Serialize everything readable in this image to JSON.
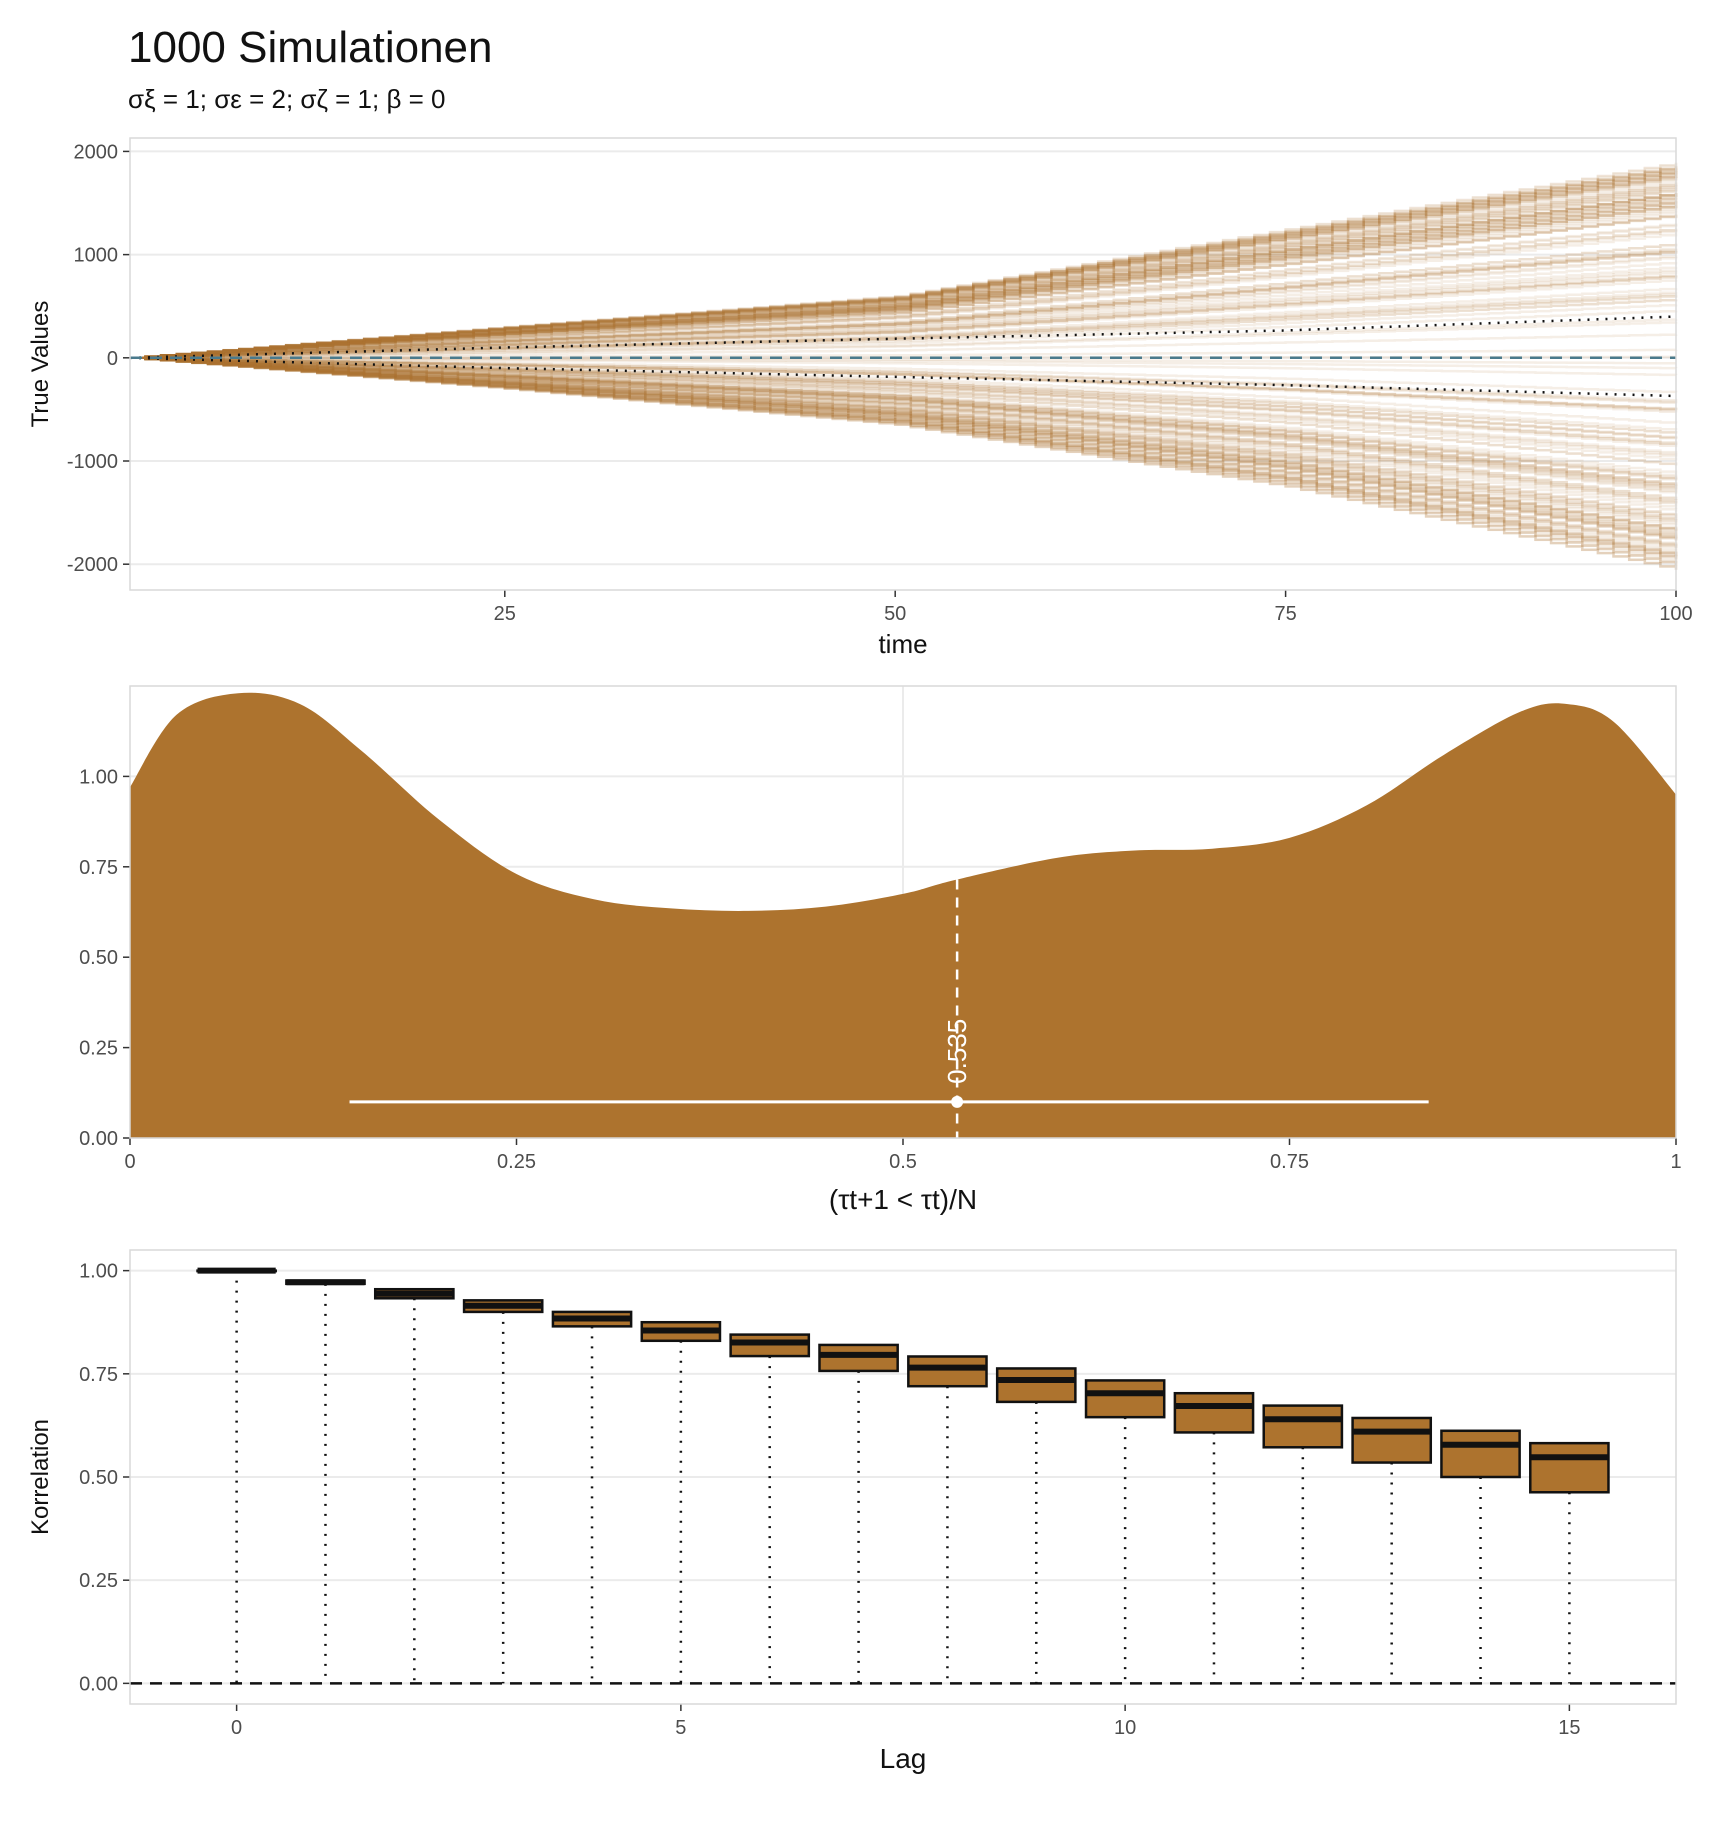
{
  "title": "1000 Simulationen",
  "subtitle": "σξ = 1;  σε = 2;  σζ = 1;  β = 0",
  "colors": {
    "fill": "#ad732e",
    "grid": "#ebebeb",
    "panel_border": "#d9d9d9",
    "ref_line": "#4a7a8c"
  },
  "chart_data": [
    {
      "type": "line",
      "name": "simulated-paths",
      "xlabel": "time",
      "ylabel": "True Values",
      "xlim": [
        1,
        100
      ],
      "ylim": [
        -2250,
        2130
      ],
      "xticks": [
        25,
        50,
        75,
        100
      ],
      "yticks": [
        -2000,
        -1000,
        0,
        1000,
        2000
      ],
      "ytick_labels": [
        "-2000",
        "-1000",
        "0",
        "1000",
        "2000"
      ],
      "n_simulations": 1000,
      "envelope_max": {
        "x": [
          1,
          25,
          50,
          75,
          100
        ],
        "y": [
          0,
          300,
          600,
          1250,
          1900
        ]
      },
      "envelope_min": {
        "x": [
          1,
          25,
          50,
          75,
          100
        ],
        "y": [
          0,
          -300,
          -650,
          -1250,
          -2060
        ]
      },
      "dotted_bounds_upper": {
        "x": [
          1,
          25,
          50,
          75,
          100
        ],
        "y": [
          0,
          100,
          185,
          265,
          400
        ]
      },
      "dotted_bounds_lower": {
        "x": [
          1,
          25,
          50,
          75,
          100
        ],
        "y": [
          0,
          -100,
          -185,
          -265,
          -370
        ]
      },
      "reference_line": 0,
      "grid": true
    },
    {
      "type": "area",
      "name": "proportion-density",
      "xlabel": "(τt+1 < τt)/N",
      "ylabel": "",
      "xlim": [
        0,
        1
      ],
      "ylim": [
        0,
        1.25
      ],
      "xticks": [
        0,
        0.25,
        0.5,
        0.75,
        1
      ],
      "xtick_labels": [
        "0",
        "0.25",
        "0.5",
        "0.75",
        "1"
      ],
      "yticks": [
        0,
        0.25,
        0.5,
        0.75,
        1.0
      ],
      "ytick_labels": [
        "0.00",
        "0.25",
        "0.50",
        "0.75",
        "1.00"
      ],
      "density": {
        "x": [
          0,
          0.03,
          0.07,
          0.11,
          0.15,
          0.2,
          0.25,
          0.3,
          0.35,
          0.4,
          0.45,
          0.5,
          0.535,
          0.6,
          0.65,
          0.7,
          0.75,
          0.8,
          0.85,
          0.9,
          0.93,
          0.96,
          1.0
        ],
        "y": [
          0.97,
          1.17,
          1.23,
          1.2,
          1.07,
          0.88,
          0.73,
          0.66,
          0.635,
          0.628,
          0.64,
          0.675,
          0.715,
          0.775,
          0.795,
          0.8,
          0.83,
          0.92,
          1.06,
          1.18,
          1.2,
          1.15,
          0.95
        ]
      },
      "median": 0.535,
      "median_label": "0.535",
      "interval": [
        0.142,
        0.84
      ],
      "interval_y": 0.1,
      "grid": true
    },
    {
      "type": "bar",
      "name": "lag-correlation-boxes",
      "xlabel": "Lag",
      "ylabel": "Korrelation",
      "xlim": [
        -1.2,
        16.2
      ],
      "ylim": [
        -0.05,
        1.05
      ],
      "xticks": [
        0,
        5,
        10,
        15
      ],
      "xtick_labels": [
        "0",
        "5",
        "10",
        "15"
      ],
      "yticks": [
        0,
        0.25,
        0.5,
        0.75,
        1.0
      ],
      "ytick_labels": [
        "0.00",
        "0.25",
        "0.50",
        "0.75",
        "1.00"
      ],
      "lags": [
        0,
        1,
        2,
        3,
        4,
        5,
        6,
        7,
        8,
        9,
        10,
        11,
        12,
        13,
        14,
        15
      ],
      "lower": [
        1.0,
        0.968,
        0.933,
        0.9,
        0.865,
        0.83,
        0.793,
        0.757,
        0.72,
        0.682,
        0.645,
        0.608,
        0.572,
        0.535,
        0.5,
        0.463
      ],
      "median": [
        1.0,
        0.972,
        0.944,
        0.915,
        0.884,
        0.855,
        0.826,
        0.796,
        0.765,
        0.735,
        0.703,
        0.672,
        0.64,
        0.61,
        0.578,
        0.548
      ],
      "upper": [
        1.0,
        0.976,
        0.955,
        0.928,
        0.9,
        0.875,
        0.845,
        0.82,
        0.792,
        0.763,
        0.734,
        0.703,
        0.673,
        0.643,
        0.612,
        0.582
      ],
      "reference_line": 0,
      "grid": true
    }
  ]
}
